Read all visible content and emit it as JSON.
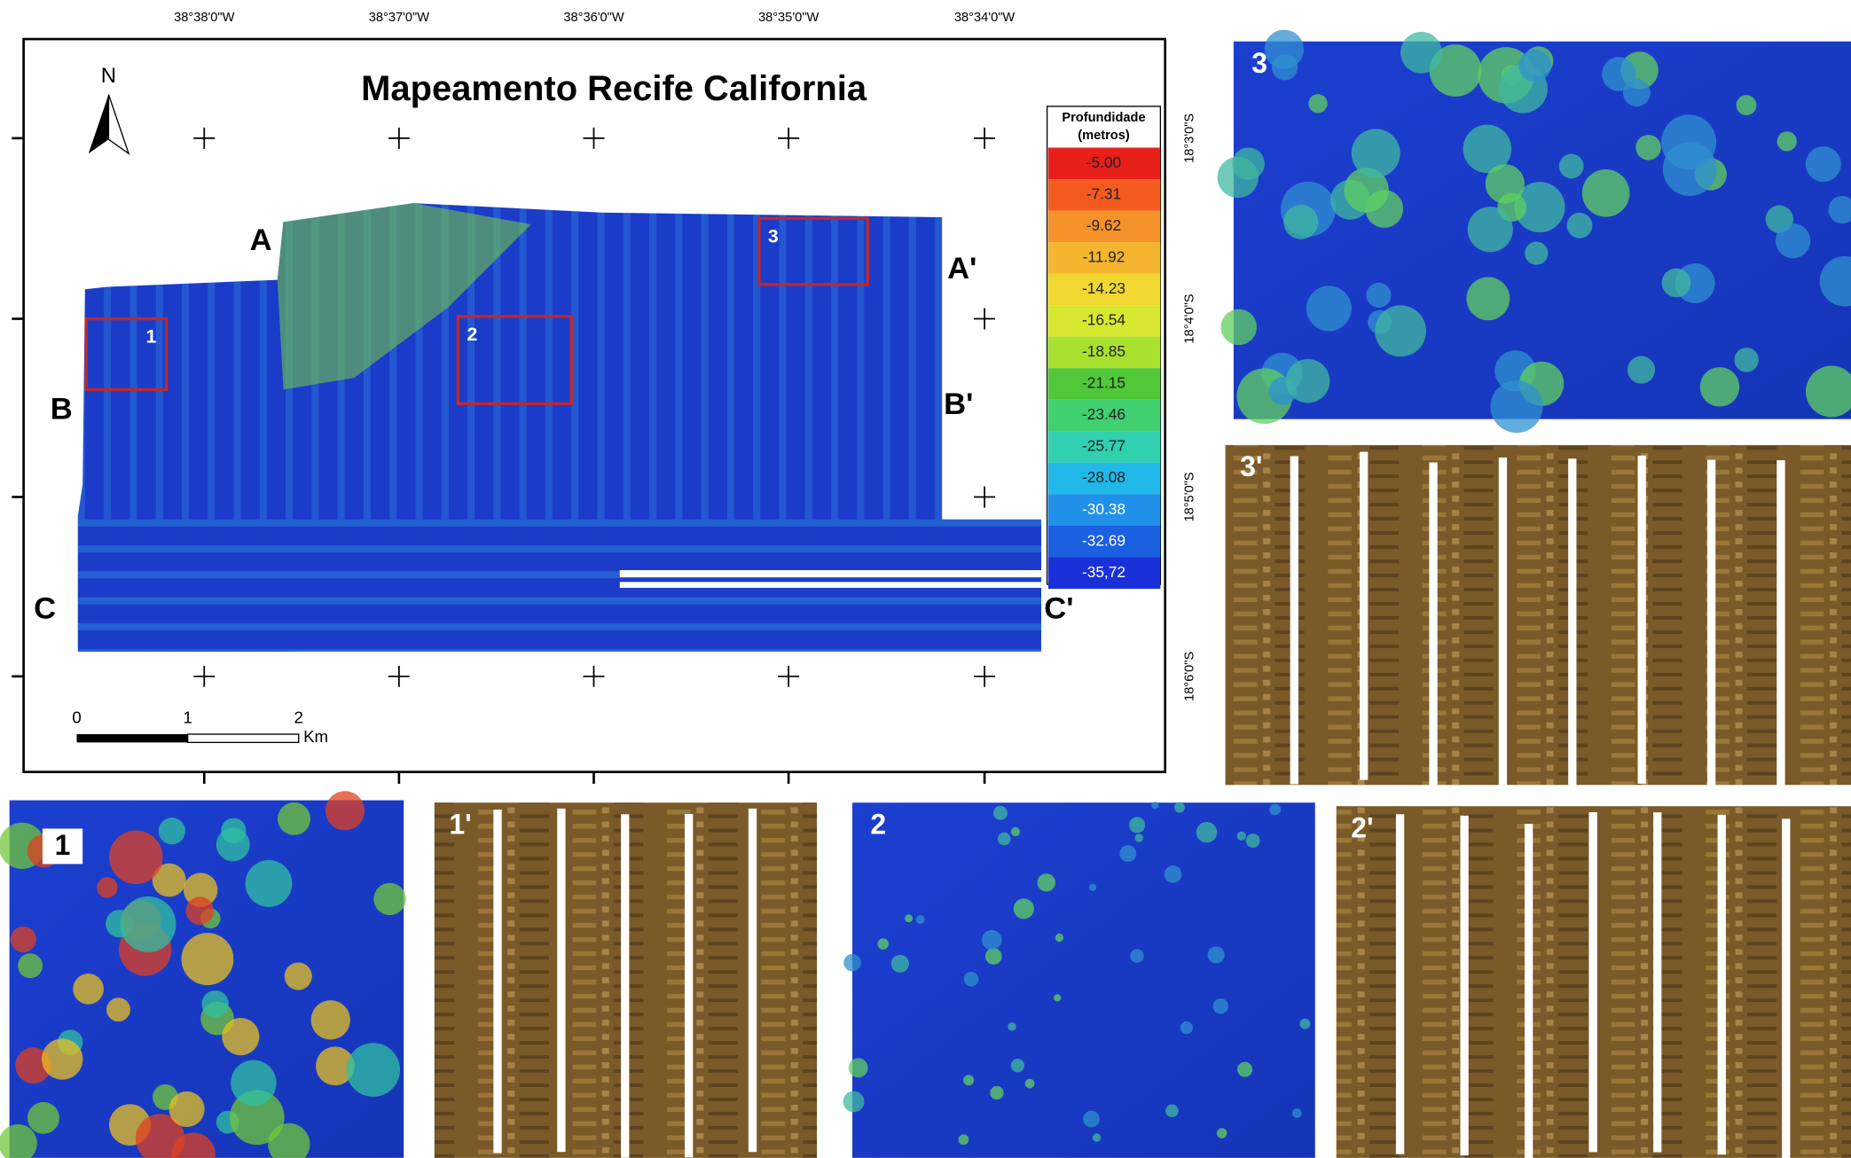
{
  "header": {
    "title": "Mapeamento Recife California"
  },
  "longitude_labels": [
    "38°38'0\"W",
    "38°37'0\"W",
    "38°36'0\"W",
    "38°35'0\"W",
    "38°34'0\"W"
  ],
  "latitude_labels": [
    "18°3'0\"S",
    "18°4'0\"S",
    "18°5'0\"S",
    "18°6'0\"S"
  ],
  "north": "N",
  "legend": {
    "title": "Profundidade",
    "unit": "(metros)",
    "entries": [
      {
        "label": "-5.00",
        "color": "#e8201a"
      },
      {
        "label": "-7.31",
        "color": "#f45a1e"
      },
      {
        "label": "-9.62",
        "color": "#f5922a"
      },
      {
        "label": "-11.92",
        "color": "#f5b52e"
      },
      {
        "label": "-14.23",
        "color": "#f0d830"
      },
      {
        "label": "-16.54",
        "color": "#d8e830"
      },
      {
        "label": "-18.85",
        "color": "#a8e030"
      },
      {
        "label": "-21.15",
        "color": "#50c838"
      },
      {
        "label": "-23.46",
        "color": "#40d070"
      },
      {
        "label": "-25.77",
        "color": "#30d0b0"
      },
      {
        "label": "-28.08",
        "color": "#20b8e8"
      },
      {
        "label": "-30.38",
        "color": "#2090e8"
      },
      {
        "label": "-32.69",
        "color": "#1a60e0"
      },
      {
        "label": "-35,72",
        "color": "#1a30d8"
      }
    ]
  },
  "profiles": [
    "A",
    "A'",
    "B",
    "B'",
    "C",
    "C'"
  ],
  "boxes": [
    "1",
    "2",
    "3"
  ],
  "scale": {
    "labels": [
      "0",
      "1",
      "2"
    ],
    "unit": "Km"
  },
  "panels": [
    "3",
    "3'",
    "1",
    "1'",
    "2",
    "2'"
  ]
}
